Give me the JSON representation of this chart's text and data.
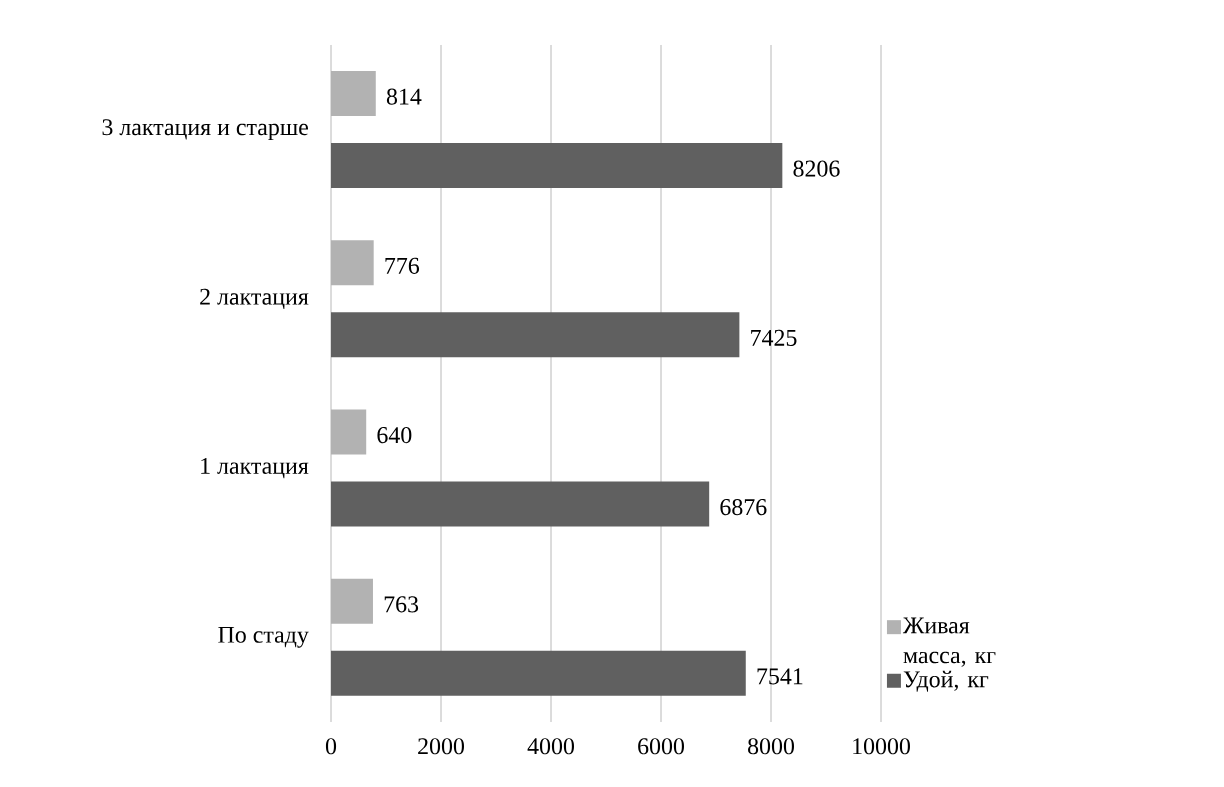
{
  "chart_data": {
    "type": "bar",
    "orientation": "horizontal",
    "categories": [
      "3 лактация и старше",
      "2 лактация",
      "1 лактация",
      "По стаду"
    ],
    "series": [
      {
        "name": "Живая масса, кг",
        "color": "#b2b2b2",
        "values": [
          814,
          776,
          640,
          763
        ]
      },
      {
        "name": "Удой, кг",
        "color": "#606060",
        "values": [
          8206,
          7425,
          6876,
          7541
        ]
      }
    ],
    "xlim": [
      0,
      10000
    ],
    "xticks": [
      0,
      2000,
      4000,
      6000,
      8000,
      10000
    ],
    "grid": "x",
    "legend": "right",
    "data_labels": true
  }
}
